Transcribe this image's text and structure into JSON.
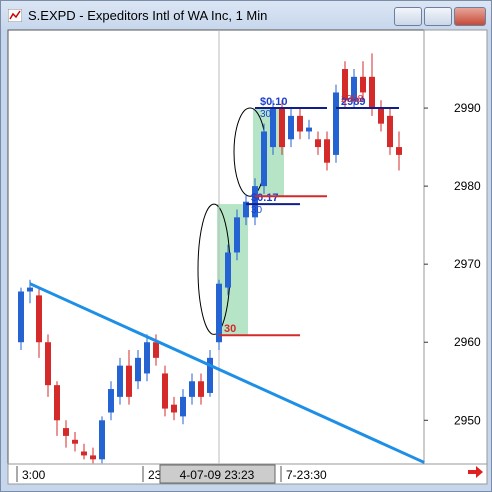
{
  "window": {
    "title": "S.EXPD - Expeditors Intl of WA Inc, 1 Min"
  },
  "chart_data": {
    "type": "candlestick",
    "up_color": "#2563d3",
    "down_color": "#d42a2a",
    "ylim": [
      2944.4,
      3000
    ],
    "yticks": [
      2950,
      2960,
      2970,
      2980,
      2990
    ],
    "open": [
      2960,
      2966.5,
      2966,
      2960,
      2954.5,
      2949,
      2947.5,
      2946,
      2945.5,
      2945,
      2951,
      2953,
      2957,
      2955,
      2956,
      2960,
      2956,
      2952,
      2950.5,
      2953,
      2955,
      2953.5,
      2960,
      2967,
      2971.5,
      2976,
      2976,
      2980,
      2985,
      2990,
      2986,
      2989,
      2987,
      2986,
      2986,
      2984,
      2995,
      2991,
      2994,
      2994,
      2990,
      2989,
      2985
    ],
    "high": [
      2967,
      2968,
      2967,
      2961,
      2955,
      2950,
      2948.5,
      2947,
      2946.5,
      2950.5,
      2955,
      2958,
      2959,
      2959,
      2961,
      2961,
      2957,
      2953,
      2954,
      2956,
      2956,
      2959,
      2968,
      2972.5,
      2977,
      2979,
      2981,
      2988,
      2991,
      2991,
      2990,
      2990,
      2988.5,
      2987,
      2987,
      2993,
      2996,
      2995,
      2996,
      2997,
      2991,
      2990,
      2987
    ],
    "low": [
      2959,
      2965,
      2958,
      2953,
      2948,
      2946.5,
      2946,
      2945,
      2944.5,
      2944.5,
      2950,
      2952,
      2952,
      2954,
      2955,
      2957,
      2950.5,
      2950,
      2949.5,
      2952,
      2952,
      2953,
      2959,
      2966,
      2970.5,
      2975,
      2975,
      2979,
      2984,
      2984,
      2985,
      2986,
      2986,
      2984,
      2982,
      2983,
      2990,
      2990,
      2991,
      2989,
      2987,
      2984,
      2982
    ],
    "close": [
      2966.5,
      2967,
      2960,
      2954.5,
      2950,
      2948,
      2947,
      2945.5,
      2945,
      2950,
      2954,
      2957,
      2953,
      2958,
      2960,
      2958,
      2951.5,
      2951,
      2953,
      2955,
      2953,
      2958,
      2967.5,
      2971.5,
      2976,
      2978,
      2980,
      2987,
      2990,
      2985,
      2989,
      2987,
      2987.5,
      2985,
      2983,
      2992,
      2991,
      2994,
      2992,
      2990,
      2988,
      2985,
      2984
    ],
    "cursor_index": 22,
    "trendline": {
      "color": "#1e8fe6",
      "start": [
        1,
        2967.5
      ],
      "end": [
        44.8,
        2944.6
      ]
    },
    "zones": [
      {
        "low": 2961,
        "high": 2977.7,
        "start": 22,
        "end": 25
      },
      {
        "low": 2978.7,
        "high": 2990,
        "start": 26,
        "end": 29
      }
    ],
    "levels": [
      {
        "value": 2990,
        "start": 26,
        "end": 34,
        "color": "#101d8a",
        "label": "$0.10",
        "sublabel": "30"
      },
      {
        "value": 2990,
        "start": 35,
        "end": 42,
        "color": "#101d8a",
        "label": "2989",
        "sublabel": "2988"
      },
      {
        "value": 2977.7,
        "start": 25,
        "end": 31,
        "color": "#101d8a",
        "label": "$0.17",
        "sublabel": "30"
      },
      {
        "value": 2978.7,
        "start": 26,
        "end": 34,
        "color": "#d42a2a"
      },
      {
        "value": 2960.9,
        "start": 22,
        "end": 31,
        "color": "#d42a2a",
        "label": "30"
      }
    ],
    "x_labels": [
      "3:00",
      "23",
      "7-23:30"
    ],
    "cursor_label": "4-07-09 23:23"
  }
}
